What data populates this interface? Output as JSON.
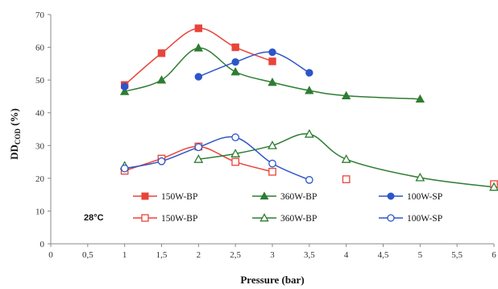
{
  "chart_data": {
    "type": "scatter",
    "xlabel": "Pressure (bar)",
    "ylabel_main": "DD",
    "ylabel_sub": "COD",
    "ylabel_tail": " (%)",
    "xlim": [
      0,
      6
    ],
    "ylim": [
      0,
      70
    ],
    "x_ticks": [
      0,
      0.5,
      1,
      1.5,
      2,
      2.5,
      3,
      3.5,
      4,
      4.5,
      5,
      5.5,
      6
    ],
    "x_tick_labels": [
      "0",
      "0,5",
      "1",
      "1,5",
      "2",
      "2,5",
      "3",
      "3,5",
      "4",
      "4,5",
      "5",
      "5,5",
      "6"
    ],
    "y_ticks": [
      0,
      10,
      20,
      30,
      40,
      50,
      60,
      70
    ],
    "y_tick_labels": [
      "0",
      "10",
      "20",
      "30",
      "40",
      "50",
      "60",
      "70"
    ],
    "grid": false,
    "legend_position": "bottom-inside",
    "annotation": "28°C",
    "series": [
      {
        "name": "150W-BP",
        "marker": "square",
        "filled": true,
        "color": "#e8443a",
        "points": [
          [
            1,
            48.5
          ],
          [
            1.5,
            58.2
          ],
          [
            2,
            65.8
          ],
          [
            2.5,
            60.0
          ],
          [
            3,
            55.7
          ]
        ],
        "curve": [
          [
            1,
            48.5
          ],
          [
            1.5,
            58.2
          ],
          [
            2,
            65.8
          ],
          [
            2.5,
            60.0
          ],
          [
            3,
            55.7
          ]
        ]
      },
      {
        "name": "360W-BP",
        "marker": "triangle",
        "filled": true,
        "color": "#2e7d32",
        "points": [
          [
            1,
            46.5
          ],
          [
            1.5,
            50.0
          ],
          [
            2,
            59.8
          ],
          [
            2.5,
            52.5
          ],
          [
            3,
            49.3
          ],
          [
            3.5,
            46.8
          ],
          [
            4,
            45.2
          ],
          [
            5,
            44.2
          ]
        ],
        "curve": [
          [
            1,
            46.5
          ],
          [
            1.5,
            50.0
          ],
          [
            2,
            59.8
          ],
          [
            2.5,
            52.5
          ],
          [
            3,
            49.3
          ],
          [
            3.5,
            46.8
          ],
          [
            4,
            45.2
          ],
          [
            5,
            44.2
          ]
        ]
      },
      {
        "name": "100W-SP",
        "marker": "circle",
        "filled": true,
        "color": "#2d55c8",
        "points": [
          [
            1,
            48.0
          ],
          [
            2,
            51.0
          ],
          [
            2.5,
            55.5
          ],
          [
            3,
            58.5
          ],
          [
            3.5,
            52.2
          ]
        ],
        "curve": [
          [
            2,
            51.0
          ],
          [
            2.5,
            55.5
          ],
          [
            3,
            58.5
          ],
          [
            3.5,
            52.2
          ]
        ]
      },
      {
        "name": "150W-BP",
        "marker": "square",
        "filled": false,
        "color": "#e8443a",
        "points": [
          [
            1,
            22.3
          ],
          [
            1.5,
            26.0
          ],
          [
            2,
            29.7
          ],
          [
            2.5,
            25.0
          ],
          [
            3,
            22.0
          ],
          [
            4,
            19.7
          ],
          [
            6,
            18.2
          ]
        ],
        "curve": [
          [
            1,
            22.3
          ],
          [
            1.5,
            26.0
          ],
          [
            2,
            29.7
          ],
          [
            2.5,
            25.0
          ],
          [
            3,
            22.0
          ]
        ]
      },
      {
        "name": "360W-BP",
        "marker": "triangle",
        "filled": false,
        "color": "#2e7d32",
        "points": [
          [
            1,
            23.8
          ],
          [
            2,
            25.8
          ],
          [
            2.5,
            27.5
          ],
          [
            3,
            30.0
          ],
          [
            3.5,
            33.5
          ],
          [
            4,
            25.8
          ],
          [
            5,
            20.2
          ],
          [
            6,
            17.3
          ]
        ],
        "curve": [
          [
            2,
            25.8
          ],
          [
            2.5,
            27.5
          ],
          [
            3,
            30.0
          ],
          [
            3.5,
            33.5
          ],
          [
            4,
            25.8
          ],
          [
            5,
            20.2
          ],
          [
            6,
            17.3
          ]
        ]
      },
      {
        "name": "100W-SP",
        "marker": "circle",
        "filled": false,
        "color": "#2d55c8",
        "points": [
          [
            1,
            23.0
          ],
          [
            1.5,
            25.2
          ],
          [
            2,
            29.5
          ],
          [
            2.5,
            32.5
          ],
          [
            3,
            24.5
          ],
          [
            3.5,
            19.5
          ]
        ],
        "curve": [
          [
            1,
            23.0
          ],
          [
            1.5,
            25.2
          ],
          [
            2,
            29.5
          ],
          [
            2.5,
            32.5
          ],
          [
            3,
            24.5
          ],
          [
            3.5,
            19.5
          ]
        ]
      }
    ]
  }
}
